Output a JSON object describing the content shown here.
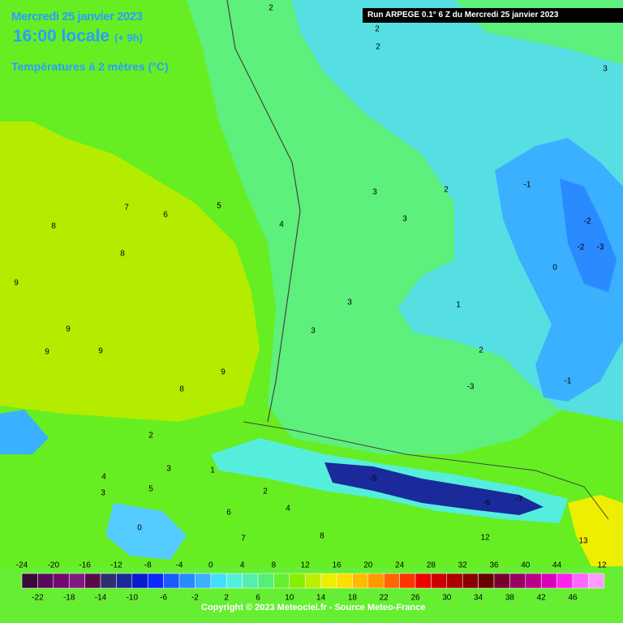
{
  "header": {
    "date": "Mercredi 25 janvier 2023",
    "time": "16:00 locale",
    "offset": "(+ 9h)",
    "variable": "Températures à 2 mètres (°C)",
    "run": "Run ARPEGE 0.1° 6 Z du Mercredi 25 janvier 2023",
    "copyright": "Copyright © 2023 Meteociel.fr - Source Meteo-France"
  },
  "contour_labels": [
    "2",
    "2",
    "2",
    "3",
    "7",
    "6",
    "5",
    "4",
    "8",
    "8",
    "9",
    "9",
    "9",
    "9",
    "8",
    "9",
    "3",
    "3",
    "3",
    "3",
    "2",
    "2",
    "-1",
    "-2",
    "-3",
    "0",
    "1",
    "-2",
    "-1",
    "-3",
    "2",
    "3",
    "5",
    "4",
    "3",
    "2",
    "6",
    "1",
    "0",
    "-5",
    "-6",
    "-7",
    "4",
    "7",
    "8",
    "12",
    "13",
    "12"
  ],
  "legend": {
    "labels_top": [
      -24,
      -20,
      -16,
      -12,
      -8,
      -4,
      0,
      4,
      8,
      12,
      16,
      20,
      24,
      28,
      32,
      36,
      40,
      44
    ],
    "labels_bottom": [
      -22,
      -18,
      -14,
      -10,
      -6,
      -2,
      2,
      6,
      10,
      14,
      18,
      22,
      26,
      30,
      34,
      38,
      42,
      46
    ],
    "colors": [
      "#3a0a3a",
      "#5a0a5a",
      "#700a70",
      "#801a80",
      "#5a0a4a",
      "#303070",
      "#1a2a9a",
      "#0a1ad0",
      "#0a2aff",
      "#1a5aff",
      "#2a8aff",
      "#3ab0ff",
      "#44ddff",
      "#55eedd",
      "#55eeaa",
      "#55ee77",
      "#66ee33",
      "#88ee00",
      "#bbee00",
      "#eeee00",
      "#ffdd00",
      "#ffbb00",
      "#ff9900",
      "#ff6600",
      "#ff3300",
      "#ee0000",
      "#cc0000",
      "#aa0000",
      "#880000",
      "#660000",
      "#770030",
      "#990060",
      "#bb0088",
      "#dd00bb",
      "#ff22ee",
      "#ff66ff",
      "#ff99ff"
    ]
  }
}
